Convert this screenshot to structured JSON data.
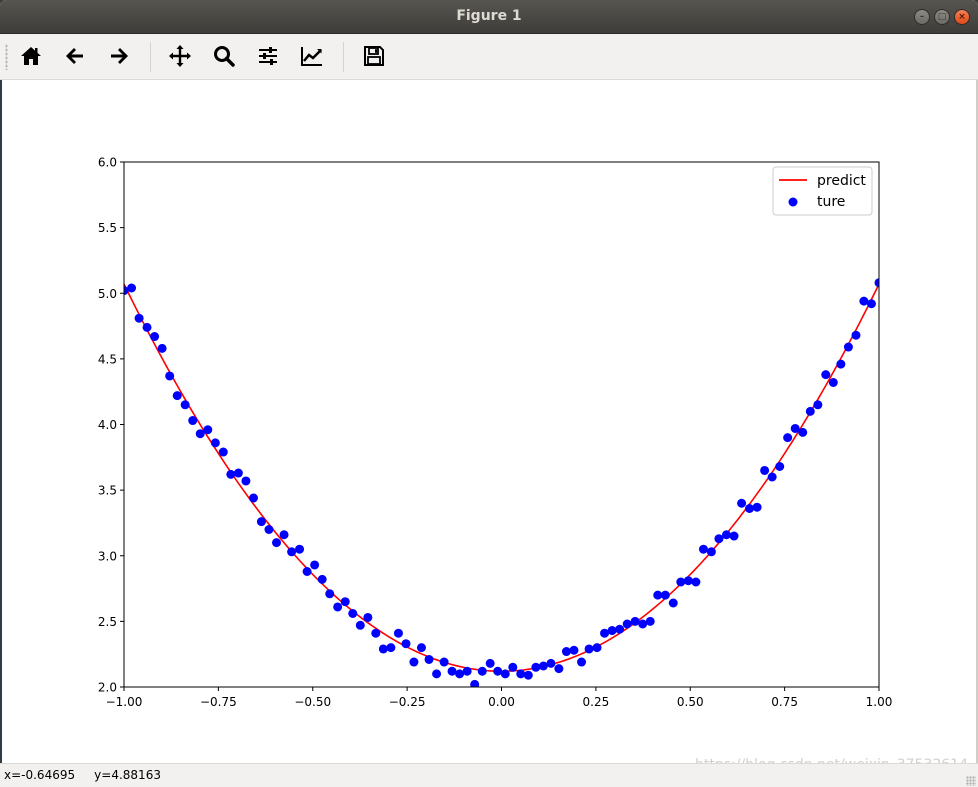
{
  "window": {
    "title": "Figure 1",
    "minimize_glyph": "–",
    "maximize_glyph": "□",
    "close_glyph": "×"
  },
  "toolbar": {
    "buttons": [
      {
        "name": "home",
        "icon": "home-icon"
      },
      {
        "name": "back",
        "icon": "arrow-left-icon"
      },
      {
        "name": "forward",
        "icon": "arrow-right-icon"
      },
      {
        "name": "pan",
        "icon": "move-icon"
      },
      {
        "name": "zoom",
        "icon": "magnifier-icon"
      },
      {
        "name": "configure-subplots",
        "icon": "sliders-icon"
      },
      {
        "name": "edit-axis",
        "icon": "line-chart-icon"
      },
      {
        "name": "save",
        "icon": "floppy-disk-icon"
      }
    ]
  },
  "status": {
    "text": "x=-0.64695     y=4.88163"
  },
  "watermark": "https://blog.csdn.net/weixin_37532614",
  "chart_data": {
    "type": "scatter",
    "title": "",
    "xlabel": "",
    "ylabel": "",
    "xlim": [
      -1.0,
      1.0
    ],
    "ylim": [
      2.0,
      6.0
    ],
    "x_ticks": [
      "−1.00",
      "−0.75",
      "−0.50",
      "−0.25",
      "0.00",
      "0.25",
      "0.50",
      "0.75",
      "1.00"
    ],
    "x_tick_values": [
      -1.0,
      -0.75,
      -0.5,
      -0.25,
      0.0,
      0.25,
      0.5,
      0.75,
      1.0
    ],
    "y_ticks": [
      "2.0",
      "2.5",
      "3.0",
      "3.5",
      "4.0",
      "4.5",
      "5.0",
      "5.5",
      "6.0"
    ],
    "y_tick_values": [
      2.0,
      2.5,
      3.0,
      3.5,
      4.0,
      4.5,
      5.0,
      5.5,
      6.0
    ],
    "grid": false,
    "legend_position": "top-right",
    "series": [
      {
        "name": "predict",
        "kind": "line",
        "color": "#ff0000",
        "function": {
          "a": 2.95,
          "b": 0.0,
          "c": 2.12
        }
      },
      {
        "name": "ture",
        "kind": "scatter",
        "color": "#0000ff",
        "x": [
          -1.0,
          -0.98,
          -0.96,
          -0.939,
          -0.919,
          -0.899,
          -0.879,
          -0.859,
          -0.838,
          -0.818,
          -0.798,
          -0.778,
          -0.758,
          -0.737,
          -0.717,
          -0.697,
          -0.677,
          -0.657,
          -0.636,
          -0.616,
          -0.596,
          -0.576,
          -0.556,
          -0.535,
          -0.515,
          -0.495,
          -0.475,
          -0.455,
          -0.434,
          -0.414,
          -0.394,
          -0.374,
          -0.354,
          -0.333,
          -0.313,
          -0.293,
          -0.273,
          -0.253,
          -0.232,
          -0.212,
          -0.192,
          -0.172,
          -0.152,
          -0.131,
          -0.111,
          -0.091,
          -0.071,
          -0.051,
          -0.03,
          -0.01,
          0.01,
          0.03,
          0.051,
          0.071,
          0.091,
          0.111,
          0.131,
          0.152,
          0.172,
          0.192,
          0.212,
          0.232,
          0.253,
          0.273,
          0.293,
          0.313,
          0.333,
          0.354,
          0.374,
          0.394,
          0.414,
          0.434,
          0.455,
          0.475,
          0.495,
          0.515,
          0.535,
          0.556,
          0.576,
          0.596,
          0.616,
          0.636,
          0.657,
          0.677,
          0.697,
          0.717,
          0.737,
          0.758,
          0.778,
          0.798,
          0.818,
          0.838,
          0.859,
          0.879,
          0.899,
          0.919,
          0.939,
          0.96,
          0.98,
          1.0
        ],
        "y": [
          5.02,
          5.04,
          4.81,
          4.74,
          4.67,
          4.58,
          4.37,
          4.22,
          4.15,
          4.03,
          3.93,
          3.96,
          3.86,
          3.79,
          3.62,
          3.63,
          3.57,
          3.44,
          3.26,
          3.2,
          3.1,
          3.16,
          3.03,
          3.05,
          2.88,
          2.93,
          2.82,
          2.71,
          2.61,
          2.65,
          2.56,
          2.47,
          2.53,
          2.41,
          2.29,
          2.3,
          2.41,
          2.33,
          2.19,
          2.3,
          2.21,
          2.1,
          2.19,
          2.12,
          2.1,
          2.12,
          2.02,
          2.12,
          2.18,
          2.12,
          2.1,
          2.15,
          2.1,
          2.09,
          2.15,
          2.16,
          2.18,
          2.14,
          2.27,
          2.28,
          2.19,
          2.29,
          2.3,
          2.41,
          2.43,
          2.44,
          2.48,
          2.5,
          2.48,
          2.5,
          2.7,
          2.7,
          2.64,
          2.8,
          2.81,
          2.8,
          3.05,
          3.03,
          3.13,
          3.16,
          3.15,
          3.4,
          3.36,
          3.37,
          3.65,
          3.6,
          3.68,
          3.9,
          3.97,
          3.94,
          4.1,
          4.15,
          4.38,
          4.32,
          4.46,
          4.59,
          4.68,
          4.94,
          4.92,
          5.08
        ]
      }
    ]
  }
}
